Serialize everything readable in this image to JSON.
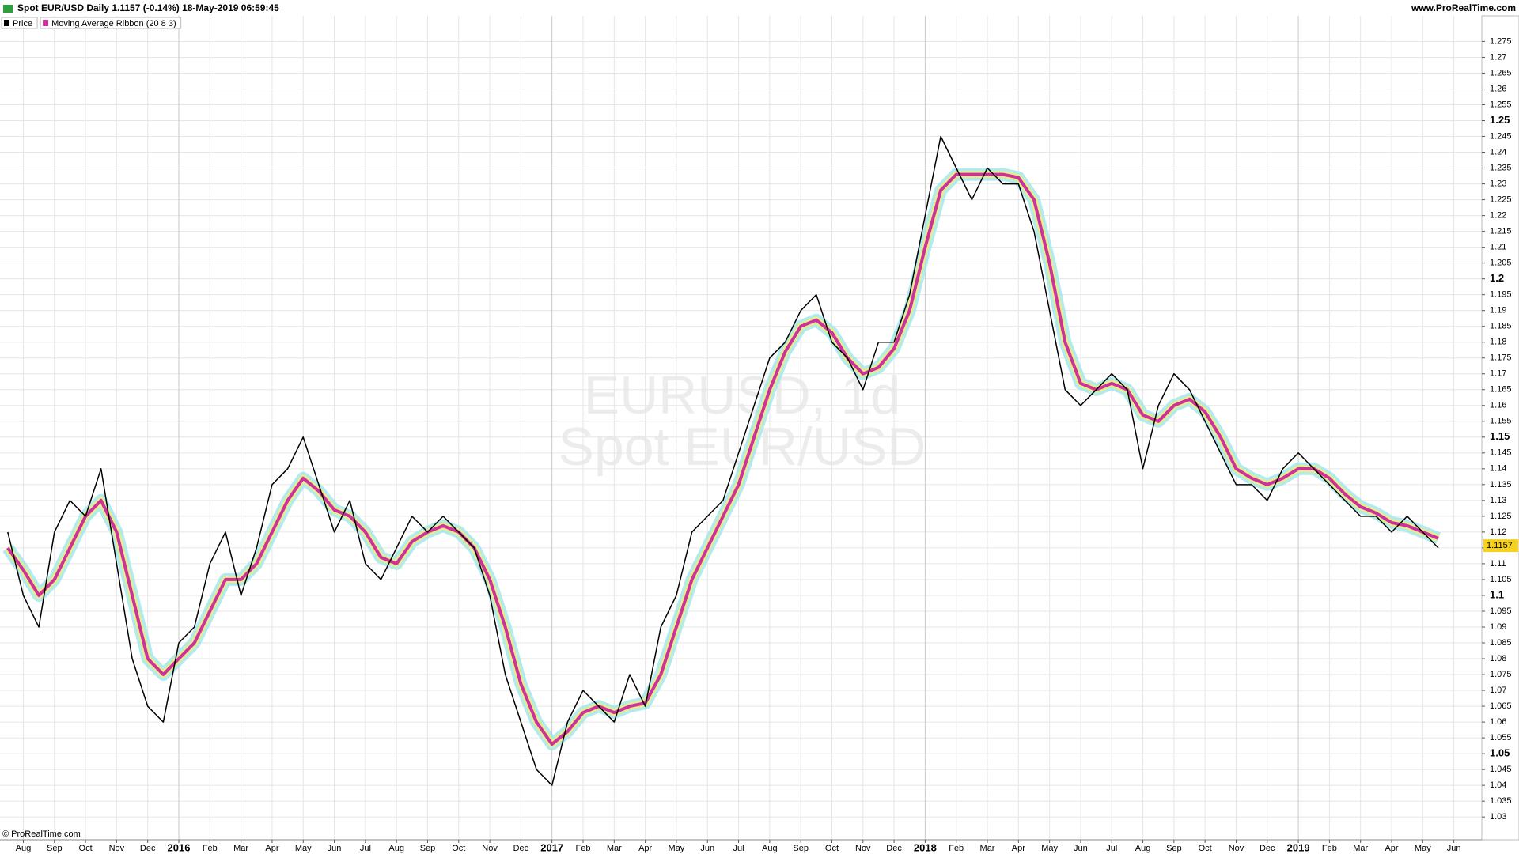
{
  "header": {
    "title": "Spot EUR/USD Daily 1.1157 (-0.14%) 18-May-2019 06:59:45",
    "site": "www.ProRealTime.com",
    "copyright": "© ProRealTime.com"
  },
  "chart_data": {
    "type": "line",
    "watermark": [
      "EURUSD, 1d",
      "Spot EUR/USD"
    ],
    "last_price": 1.1157,
    "grid": true,
    "xlim": [
      -0.75,
      46.9
    ],
    "ylim": [
      1.0228,
      1.2831
    ],
    "xticks": [
      {
        "value": 0,
        "label": "Aug"
      },
      {
        "value": 1,
        "label": "Sep"
      },
      {
        "value": 2,
        "label": "Oct"
      },
      {
        "value": 3,
        "label": "Nov"
      },
      {
        "value": 4,
        "label": "Dec"
      },
      {
        "value": 5,
        "label": "2016"
      },
      {
        "value": 6,
        "label": "Feb"
      },
      {
        "value": 7,
        "label": "Mar"
      },
      {
        "value": 8,
        "label": "Apr"
      },
      {
        "value": 9,
        "label": "May"
      },
      {
        "value": 10,
        "label": "Jun"
      },
      {
        "value": 11,
        "label": "Jul"
      },
      {
        "value": 12,
        "label": "Aug"
      },
      {
        "value": 13,
        "label": "Sep"
      },
      {
        "value": 14,
        "label": "Oct"
      },
      {
        "value": 15,
        "label": "Nov"
      },
      {
        "value": 16,
        "label": "Dec"
      },
      {
        "value": 17,
        "label": "2017"
      },
      {
        "value": 18,
        "label": "Feb"
      },
      {
        "value": 19,
        "label": "Mar"
      },
      {
        "value": 20,
        "label": "Apr"
      },
      {
        "value": 21,
        "label": "May"
      },
      {
        "value": 22,
        "label": "Jun"
      },
      {
        "value": 23,
        "label": "Jul"
      },
      {
        "value": 24,
        "label": "Aug"
      },
      {
        "value": 25,
        "label": "Sep"
      },
      {
        "value": 26,
        "label": "Oct"
      },
      {
        "value": 27,
        "label": "Nov"
      },
      {
        "value": 28,
        "label": "Dec"
      },
      {
        "value": 29,
        "label": "2018"
      },
      {
        "value": 30,
        "label": "Feb"
      },
      {
        "value": 31,
        "label": "Mar"
      },
      {
        "value": 32,
        "label": "Apr"
      },
      {
        "value": 33,
        "label": "May"
      },
      {
        "value": 34,
        "label": "Jun"
      },
      {
        "value": 35,
        "label": "Jul"
      },
      {
        "value": 36,
        "label": "Aug"
      },
      {
        "value": 37,
        "label": "Sep"
      },
      {
        "value": 38,
        "label": "Oct"
      },
      {
        "value": 39,
        "label": "Nov"
      },
      {
        "value": 40,
        "label": "Dec"
      },
      {
        "value": 41,
        "label": "2019"
      },
      {
        "value": 42,
        "label": "Feb"
      },
      {
        "value": 43,
        "label": "Mar"
      },
      {
        "value": 44,
        "label": "Apr"
      },
      {
        "value": 45,
        "label": "May"
      },
      {
        "value": 46,
        "label": "Jun"
      }
    ],
    "yticks": [
      1.03,
      1.035,
      1.04,
      1.045,
      1.05,
      1.055,
      1.06,
      1.065,
      1.07,
      1.075,
      1.08,
      1.085,
      1.09,
      1.095,
      1.1,
      1.105,
      1.11,
      1.115,
      1.12,
      1.125,
      1.13,
      1.135,
      1.14,
      1.145,
      1.15,
      1.155,
      1.16,
      1.165,
      1.17,
      1.175,
      1.18,
      1.185,
      1.19,
      1.195,
      1.2,
      1.205,
      1.21,
      1.215,
      1.22,
      1.225,
      1.23,
      1.235,
      1.24,
      1.245,
      1.25,
      1.255,
      1.26,
      1.265,
      1.27,
      1.275
    ],
    "x": [
      -0.5,
      0,
      0.5,
      1,
      1.5,
      2,
      2.5,
      3,
      3.5,
      4,
      4.5,
      5,
      5.5,
      6,
      6.5,
      7,
      7.5,
      8,
      8.5,
      9,
      9.5,
      10,
      10.5,
      11,
      11.5,
      12,
      12.5,
      13,
      13.5,
      14,
      14.5,
      15,
      15.5,
      16,
      16.5,
      17,
      17.5,
      18,
      18.5,
      19,
      19.5,
      20,
      20.5,
      21,
      21.5,
      22,
      22.5,
      23,
      23.5,
      24,
      24.5,
      25,
      25.5,
      26,
      26.5,
      27,
      27.5,
      28,
      28.5,
      29,
      29.5,
      30,
      30.5,
      31,
      31.5,
      32,
      32.5,
      33,
      33.5,
      34,
      34.5,
      35,
      35.5,
      36,
      36.5,
      37,
      37.5,
      38,
      38.5,
      39,
      39.5,
      40,
      40.5,
      41,
      41.5,
      42,
      42.5,
      43,
      43.5,
      44,
      44.5,
      45,
      45.5
    ],
    "series": [
      {
        "name": "Moving Average Ribbon (20 8 3)",
        "color": "#d0309a",
        "values": [
          1.115,
          1.108,
          1.1,
          1.105,
          1.115,
          1.125,
          1.13,
          1.12,
          1.1,
          1.08,
          1.075,
          1.08,
          1.085,
          1.095,
          1.105,
          1.105,
          1.11,
          1.12,
          1.13,
          1.137,
          1.133,
          1.127,
          1.125,
          1.12,
          1.112,
          1.11,
          1.117,
          1.12,
          1.122,
          1.12,
          1.115,
          1.105,
          1.09,
          1.072,
          1.06,
          1.053,
          1.057,
          1.063,
          1.065,
          1.063,
          1.065,
          1.066,
          1.075,
          1.09,
          1.105,
          1.115,
          1.125,
          1.135,
          1.15,
          1.165,
          1.177,
          1.185,
          1.187,
          1.183,
          1.175,
          1.17,
          1.172,
          1.178,
          1.19,
          1.21,
          1.228,
          1.233,
          1.233,
          1.233,
          1.233,
          1.232,
          1.225,
          1.205,
          1.18,
          1.167,
          1.165,
          1.167,
          1.165,
          1.157,
          1.155,
          1.16,
          1.162,
          1.158,
          1.15,
          1.14,
          1.137,
          1.135,
          1.137,
          1.14,
          1.14,
          1.137,
          1.132,
          1.128,
          1.126,
          1.123,
          1.122,
          1.12,
          1.118
        ]
      },
      {
        "name": "Price",
        "color": "#000000",
        "values": [
          1.12,
          1.1,
          1.09,
          1.12,
          1.13,
          1.125,
          1.14,
          1.11,
          1.08,
          1.065,
          1.06,
          1.085,
          1.09,
          1.11,
          1.12,
          1.1,
          1.115,
          1.135,
          1.14,
          1.15,
          1.135,
          1.12,
          1.13,
          1.11,
          1.105,
          1.115,
          1.125,
          1.12,
          1.125,
          1.12,
          1.115,
          1.1,
          1.075,
          1.06,
          1.045,
          1.04,
          1.06,
          1.07,
          1.065,
          1.06,
          1.075,
          1.065,
          1.09,
          1.1,
          1.12,
          1.125,
          1.13,
          1.145,
          1.16,
          1.175,
          1.18,
          1.19,
          1.195,
          1.18,
          1.175,
          1.165,
          1.18,
          1.18,
          1.195,
          1.22,
          1.245,
          1.235,
          1.225,
          1.235,
          1.23,
          1.23,
          1.215,
          1.19,
          1.165,
          1.16,
          1.165,
          1.17,
          1.165,
          1.14,
          1.16,
          1.17,
          1.165,
          1.155,
          1.145,
          1.135,
          1.135,
          1.13,
          1.14,
          1.145,
          1.14,
          1.135,
          1.13,
          1.125,
          1.125,
          1.12,
          1.125,
          1.12,
          1.115
        ]
      }
    ]
  }
}
